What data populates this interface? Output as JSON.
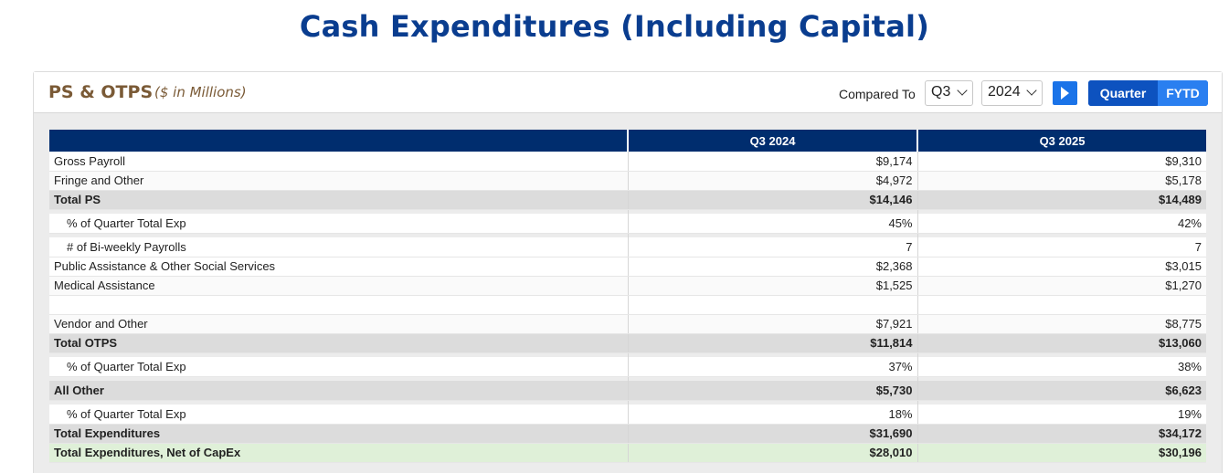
{
  "page": {
    "title": "Cash Expenditures (Including Capital)"
  },
  "card": {
    "title": "PS & OTPS",
    "subtitle": "($ in Millions)",
    "compare_label": "Compared To",
    "quarter_select": "Q3",
    "year_select": "2024",
    "toggle": {
      "quarter": "Quarter",
      "fytd": "FYTD",
      "active": "Quarter"
    },
    "colors": {
      "header_bg": "#002d6e",
      "title": "#7a5a36",
      "accent": "#1a73e8",
      "net_row": "#dff0d8"
    }
  },
  "table": {
    "columns": [
      "",
      "Q3 2024",
      "Q3 2025"
    ],
    "rows": [
      {
        "label": "Gross Payroll",
        "a": "$9,174",
        "b": "$9,310"
      },
      {
        "label": "Fringe and Other",
        "a": "$4,972",
        "b": "$5,178"
      },
      {
        "label": "Total PS",
        "a": "$14,146",
        "b": "$14,489"
      },
      {
        "label": "% of Quarter Total Exp",
        "a": "45%",
        "b": "42%"
      },
      {
        "label": "# of Bi-weekly Payrolls",
        "a": "7",
        "b": "7"
      },
      {
        "label": "Public Assistance & Other Social Services",
        "a": "$2,368",
        "b": "$3,015"
      },
      {
        "label": "Medical Assistance",
        "a": "$1,525",
        "b": "$1,270"
      },
      {
        "label": "Vendor and Other",
        "a": "$7,921",
        "b": "$8,775"
      },
      {
        "label": "Total OTPS",
        "a": "$11,814",
        "b": "$13,060"
      },
      {
        "label": "% of Quarter Total Exp",
        "a": "37%",
        "b": "38%"
      },
      {
        "label": "All Other",
        "a": "$5,730",
        "b": "$6,623"
      },
      {
        "label": "% of Quarter Total Exp",
        "a": "18%",
        "b": "19%"
      },
      {
        "label": "Total Expenditures",
        "a": "$31,690",
        "b": "$34,172"
      },
      {
        "label": "Total Expenditures, Net of CapEx",
        "a": "$28,010",
        "b": "$30,196"
      }
    ]
  }
}
